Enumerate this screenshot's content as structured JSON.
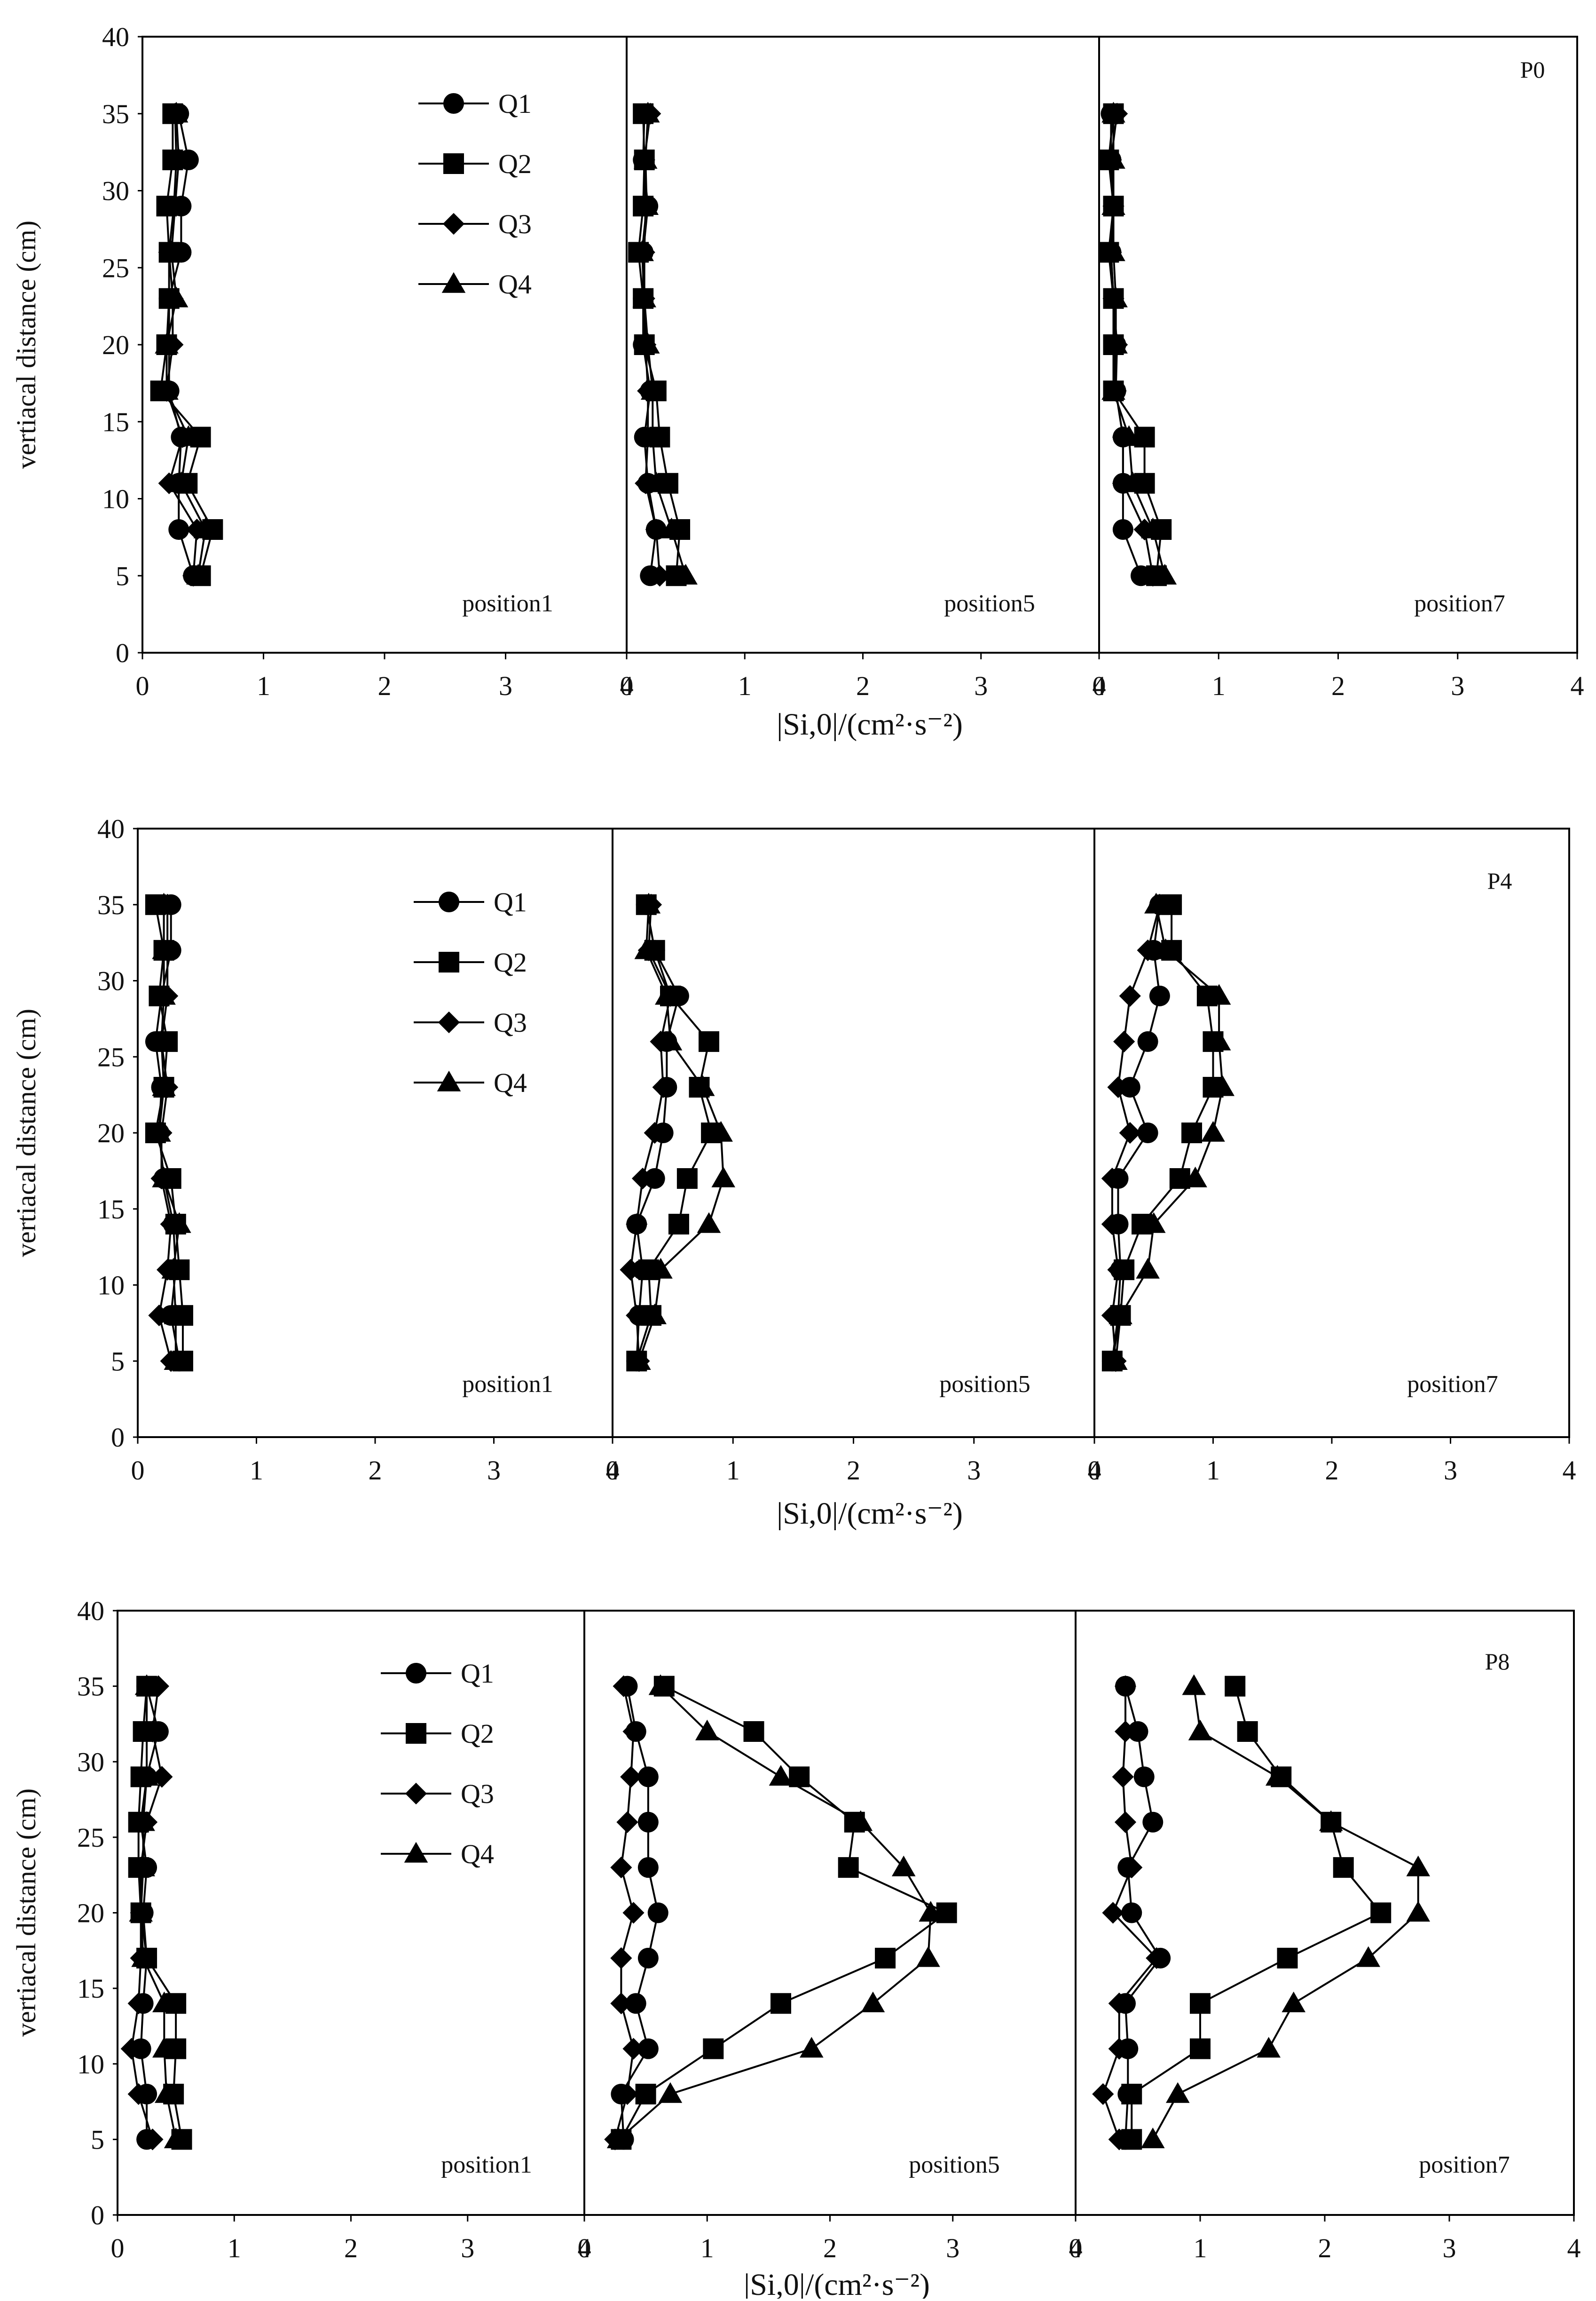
{
  "chart_data": [
    {
      "type": "line",
      "figure_label": "P0",
      "ylabel": "vertiacal distance (cm)",
      "xlabel": "|Si,0|/(cm²·s⁻²)",
      "ylim": [
        0,
        40
      ],
      "xlim": [
        0,
        4
      ],
      "yticks": [
        "0",
        "5",
        "10",
        "15",
        "20",
        "25",
        "30",
        "35",
        "40"
      ],
      "xticks": [
        "0",
        "1",
        "2",
        "3",
        "4"
      ],
      "legend": [
        "Q1",
        "Q2",
        "Q3",
        "Q4"
      ],
      "y": [
        35,
        32,
        29,
        26,
        23,
        20,
        17,
        14,
        11,
        8,
        5
      ],
      "panels": [
        {
          "label": "position1",
          "series": [
            {
              "name": "Q1",
              "values": [
                0.3,
                0.38,
                0.32,
                0.32,
                0.22,
                0.22,
                0.22,
                0.32,
                0.3,
                0.3,
                0.42
              ]
            },
            {
              "name": "Q2",
              "values": [
                0.25,
                0.25,
                0.2,
                0.22,
                0.22,
                0.2,
                0.15,
                0.48,
                0.37,
                0.58,
                0.48
              ]
            },
            {
              "name": "Q3",
              "values": [
                0.27,
                0.28,
                0.26,
                0.22,
                0.25,
                0.25,
                0.2,
                0.33,
                0.22,
                0.45,
                0.42
              ]
            },
            {
              "name": "Q4",
              "values": [
                0.28,
                0.3,
                0.27,
                0.24,
                0.28,
                0.2,
                0.2,
                0.38,
                0.32,
                0.52,
                0.46
              ]
            }
          ]
        },
        {
          "label": "position5",
          "series": [
            {
              "name": "Q1",
              "values": [
                0.15,
                0.14,
                0.18,
                0.14,
                0.14,
                0.14,
                0.2,
                0.15,
                0.18,
                0.25,
                0.2
              ]
            },
            {
              "name": "Q2",
              "values": [
                0.14,
                0.15,
                0.14,
                0.1,
                0.14,
                0.15,
                0.25,
                0.28,
                0.35,
                0.45,
                0.42
              ]
            },
            {
              "name": "Q3",
              "values": [
                0.2,
                0.15,
                0.16,
                0.15,
                0.15,
                0.16,
                0.18,
                0.18,
                0.16,
                0.25,
                0.28
              ]
            },
            {
              "name": "Q4",
              "values": [
                0.18,
                0.16,
                0.17,
                0.13,
                0.15,
                0.18,
                0.22,
                0.22,
                0.25,
                0.38,
                0.5
              ]
            }
          ]
        },
        {
          "label": "position7",
          "series": [
            {
              "name": "Q1",
              "values": [
                0.1,
                0.1,
                0.12,
                0.1,
                0.12,
                0.14,
                0.14,
                0.2,
                0.2,
                0.2,
                0.35
              ]
            },
            {
              "name": "Q2",
              "values": [
                0.12,
                0.08,
                0.12,
                0.08,
                0.12,
                0.12,
                0.12,
                0.38,
                0.38,
                0.52,
                0.48
              ]
            },
            {
              "name": "Q3",
              "values": [
                0.15,
                0.1,
                0.12,
                0.1,
                0.12,
                0.15,
                0.14,
                0.2,
                0.2,
                0.38,
                0.45
              ]
            },
            {
              "name": "Q4",
              "values": [
                0.12,
                0.12,
                0.12,
                0.12,
                0.14,
                0.14,
                0.12,
                0.25,
                0.28,
                0.45,
                0.55
              ]
            }
          ]
        }
      ]
    },
    {
      "type": "line",
      "figure_label": "P4",
      "ylabel": "vertiacal distance (cm)",
      "xlabel": "|Si,0|/(cm²·s⁻²)",
      "ylim": [
        0,
        40
      ],
      "xlim": [
        0,
        4
      ],
      "yticks": [
        "0",
        "5",
        "10",
        "15",
        "20",
        "25",
        "30",
        "35",
        "40"
      ],
      "xticks": [
        "0",
        "1",
        "2",
        "3",
        "4"
      ],
      "legend": [
        "Q1",
        "Q2",
        "Q3",
        "Q4"
      ],
      "y": [
        35,
        32,
        29,
        26,
        23,
        20,
        17,
        14,
        11,
        8,
        5
      ],
      "panels": [
        {
          "label": "position1",
          "series": [
            {
              "name": "Q1",
              "values": [
                0.28,
                0.28,
                0.2,
                0.15,
                0.2,
                0.18,
                0.22,
                0.3,
                0.32,
                0.28,
                0.35
              ]
            },
            {
              "name": "Q2",
              "values": [
                0.15,
                0.22,
                0.18,
                0.25,
                0.22,
                0.15,
                0.28,
                0.32,
                0.35,
                0.38,
                0.38
              ]
            },
            {
              "name": "Q3",
              "values": [
                0.25,
                0.25,
                0.25,
                0.2,
                0.25,
                0.2,
                0.2,
                0.28,
                0.25,
                0.18,
                0.28
              ]
            },
            {
              "name": "Q4",
              "values": [
                0.22,
                0.22,
                0.22,
                0.2,
                0.22,
                0.18,
                0.22,
                0.35,
                0.3,
                0.32,
                0.32
              ]
            }
          ]
        },
        {
          "label": "position5",
          "series": [
            {
              "name": "Q1",
              "values": [
                0.28,
                0.35,
                0.55,
                0.45,
                0.45,
                0.42,
                0.35,
                0.2,
                0.25,
                0.22,
                0.2
              ]
            },
            {
              "name": "Q2",
              "values": [
                0.28,
                0.35,
                0.48,
                0.8,
                0.72,
                0.82,
                0.62,
                0.55,
                0.3,
                0.32,
                0.2
              ]
            },
            {
              "name": "Q3",
              "values": [
                0.32,
                0.3,
                0.48,
                0.4,
                0.42,
                0.35,
                0.25,
                0.2,
                0.15,
                0.2,
                0.22
              ]
            },
            {
              "name": "Q4",
              "values": [
                0.3,
                0.28,
                0.45,
                0.48,
                0.75,
                0.9,
                0.92,
                0.8,
                0.4,
                0.35,
                0.22
              ]
            }
          ]
        },
        {
          "label": "position7",
          "series": [
            {
              "name": "Q1",
              "values": [
                0.55,
                0.5,
                0.55,
                0.45,
                0.3,
                0.45,
                0.2,
                0.2,
                0.22,
                0.2,
                0.15
              ]
            },
            {
              "name": "Q2",
              "values": [
                0.65,
                0.65,
                0.95,
                1.0,
                1.0,
                0.82,
                0.72,
                0.4,
                0.25,
                0.22,
                0.15
              ]
            },
            {
              "name": "Q3",
              "values": [
                0.55,
                0.45,
                0.3,
                0.25,
                0.2,
                0.3,
                0.15,
                0.15,
                0.2,
                0.15,
                0.18
              ]
            },
            {
              "name": "Q4",
              "values": [
                0.52,
                0.6,
                1.05,
                1.05,
                1.08,
                1.0,
                0.85,
                0.5,
                0.45,
                0.22,
                0.18
              ]
            }
          ]
        }
      ]
    },
    {
      "type": "line",
      "figure_label": "P8",
      "ylabel": "vertiacal distance (cm)",
      "xlabel": "|Si,0|/(cm²·s⁻²)",
      "ylim": [
        0,
        40
      ],
      "xlim": [
        0,
        4
      ],
      "yticks": [
        "0",
        "5",
        "10",
        "15",
        "20",
        "25",
        "30",
        "35",
        "40"
      ],
      "xticks": [
        "0",
        "1",
        "2",
        "3",
        "4"
      ],
      "legend": [
        "Q1",
        "Q2",
        "Q3",
        "Q4"
      ],
      "y": [
        35,
        32,
        29,
        26,
        23,
        20,
        17,
        14,
        11,
        8,
        5
      ],
      "panels": [
        {
          "label": "position1",
          "series": [
            {
              "name": "Q1",
              "values": [
                0.25,
                0.35,
                0.25,
                0.2,
                0.25,
                0.22,
                0.25,
                0.22,
                0.2,
                0.25,
                0.25
              ]
            },
            {
              "name": "Q2",
              "values": [
                0.25,
                0.22,
                0.2,
                0.18,
                0.18,
                0.2,
                0.25,
                0.5,
                0.5,
                0.48,
                0.55
              ]
            },
            {
              "name": "Q3",
              "values": [
                0.35,
                0.3,
                0.38,
                0.25,
                0.2,
                0.2,
                0.2,
                0.18,
                0.12,
                0.18,
                0.3
              ]
            },
            {
              "name": "Q4",
              "values": [
                0.25,
                0.25,
                0.25,
                0.22,
                0.22,
                0.2,
                0.22,
                0.4,
                0.4,
                0.42,
                0.5
              ]
            }
          ]
        },
        {
          "label": "position5",
          "series": [
            {
              "name": "Q1",
              "values": [
                0.35,
                0.42,
                0.52,
                0.52,
                0.52,
                0.6,
                0.52,
                0.42,
                0.52,
                0.3,
                0.32
              ]
            },
            {
              "name": "Q2",
              "values": [
                0.65,
                1.38,
                1.75,
                2.2,
                2.15,
                2.95,
                2.45,
                1.6,
                1.05,
                0.5,
                0.3
              ]
            },
            {
              "name": "Q3",
              "values": [
                0.32,
                0.4,
                0.38,
                0.35,
                0.3,
                0.4,
                0.3,
                0.3,
                0.4,
                0.35,
                0.25
              ]
            },
            {
              "name": "Q4",
              "values": [
                0.62,
                1.0,
                1.6,
                2.25,
                2.6,
                2.82,
                2.8,
                2.35,
                1.85,
                0.7,
                0.28
              ]
            }
          ]
        },
        {
          "label": "position7",
          "series": [
            {
              "name": "Q1",
              "values": [
                0.4,
                0.5,
                0.55,
                0.62,
                0.42,
                0.45,
                0.68,
                0.4,
                0.42,
                0.42,
                0.4
              ]
            },
            {
              "name": "Q2",
              "values": [
                1.28,
                1.38,
                1.65,
                2.05,
                2.15,
                2.45,
                1.7,
                1.0,
                1.0,
                0.45,
                0.45
              ]
            },
            {
              "name": "Q3",
              "values": [
                0.4,
                0.4,
                0.38,
                0.4,
                0.45,
                0.3,
                0.65,
                0.35,
                0.35,
                0.22,
                0.35
              ]
            },
            {
              "name": "Q4",
              "values": [
                0.95,
                1.0,
                1.62,
                2.05,
                2.75,
                2.75,
                2.35,
                1.75,
                1.55,
                0.82,
                0.62
              ]
            }
          ]
        }
      ]
    }
  ]
}
